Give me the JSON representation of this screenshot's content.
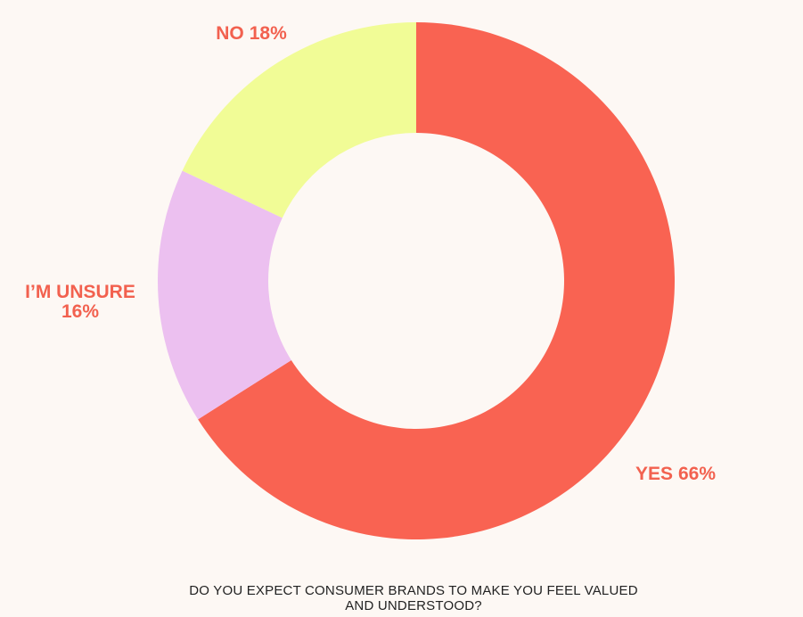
{
  "chart_data": {
    "type": "donut",
    "title": "DO YOU EXPECT CONSUMER BRANDS TO MAKE YOU FEEL VALUED AND UNDERSTOOD?",
    "categories": [
      "YES",
      "I’M UNSURE",
      "NO"
    ],
    "values": [
      66,
      16,
      18
    ],
    "value_labels": [
      "66%",
      "16%",
      "18%"
    ],
    "colors": [
      "#f96352",
      "#ecc0f0",
      "#f1fc96"
    ]
  }
}
